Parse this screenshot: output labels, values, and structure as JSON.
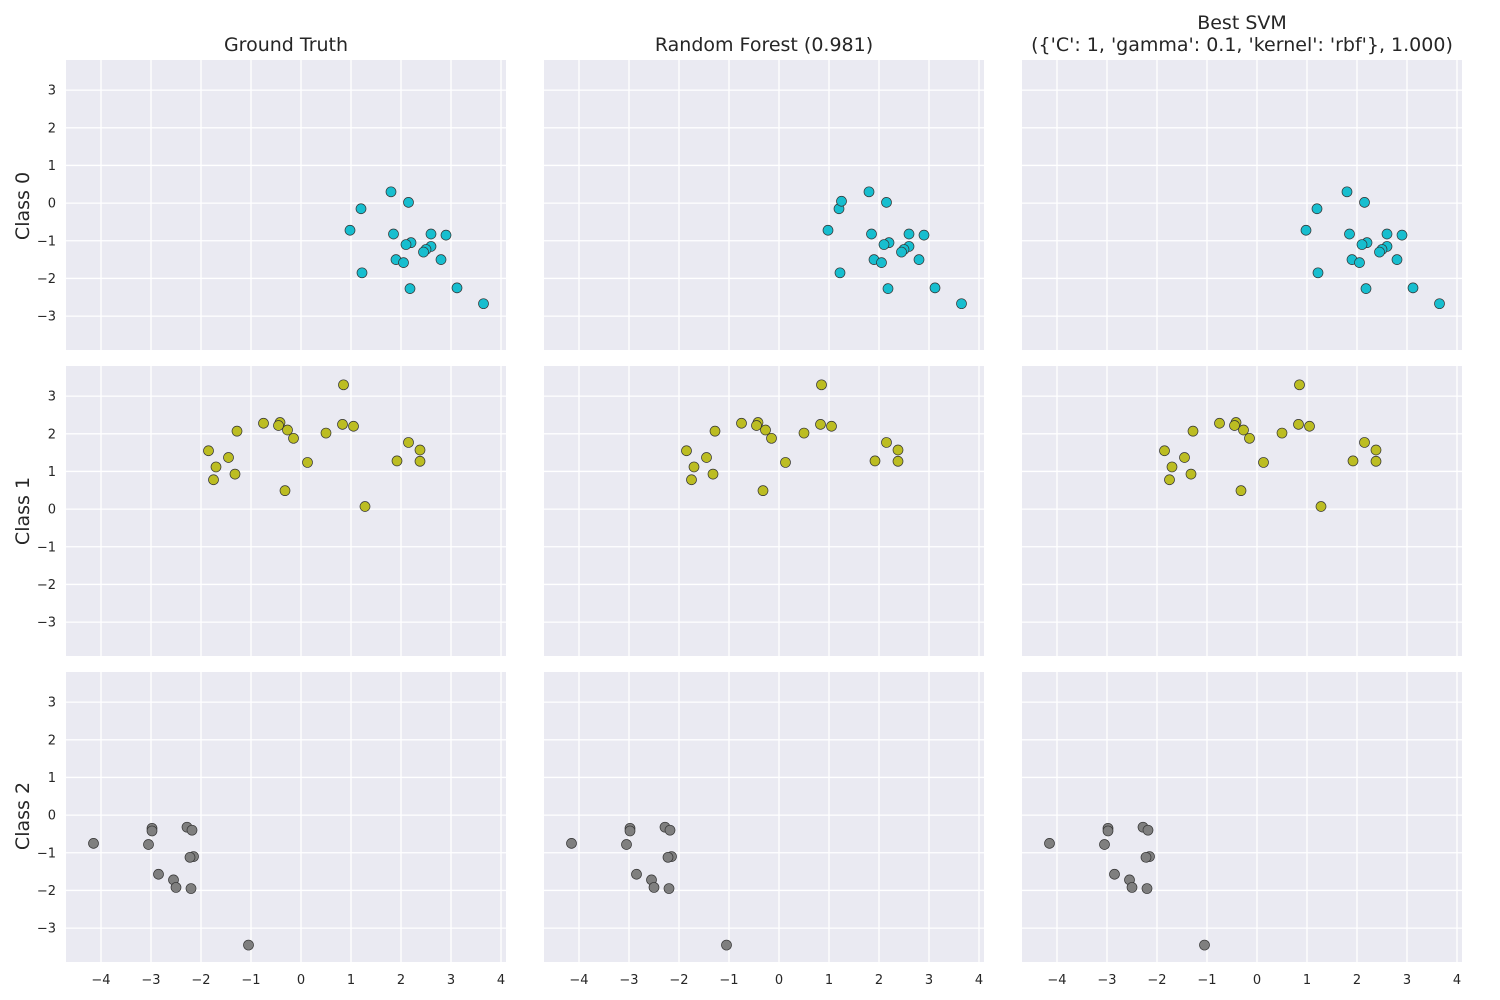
{
  "figure": {
    "column_titles": [
      {
        "lines": [
          "Ground Truth"
        ]
      },
      {
        "lines": [
          "Random Forest (0.981)"
        ]
      },
      {
        "lines": [
          "Best SVM",
          "({'C': 1, 'gamma': 0.1, 'kernel': 'rbf'}, 1.000)"
        ]
      }
    ],
    "row_labels": [
      "Class 0",
      "Class 1",
      "Class 2"
    ],
    "background_color": "#eaeaf2",
    "grid_color": "#ffffff"
  },
  "chart_data": {
    "type": "scatter",
    "layout": "3x3 grid, shared axes",
    "grid": true,
    "legend": "none",
    "xlim": [
      -4.7,
      4.1
    ],
    "ylim": [
      -3.9,
      3.8
    ],
    "xticks": [
      -4,
      -3,
      -2,
      -1,
      0,
      1,
      2,
      3,
      4
    ],
    "yticks": [
      3,
      2,
      1,
      0,
      -1,
      -2,
      -3
    ],
    "xtick_labels": [
      "−4",
      "−3",
      "−2",
      "−1",
      "0",
      "1",
      "2",
      "3",
      "4"
    ],
    "ytick_labels": [
      "3",
      "2",
      "1",
      "0",
      "−1",
      "−2",
      "−3"
    ],
    "class_colors": [
      "#17becf",
      "#bcbd22",
      "#7f7f7f"
    ],
    "point_edge_color": "#333333",
    "classes": [
      {
        "label": "Class 0",
        "points": [
          [
            1.8,
            0.3
          ],
          [
            2.15,
            0.02
          ],
          [
            1.2,
            -0.15
          ],
          [
            0.98,
            -0.72
          ],
          [
            1.85,
            -0.82
          ],
          [
            2.6,
            -0.82
          ],
          [
            2.9,
            -0.85
          ],
          [
            2.2,
            -1.05
          ],
          [
            2.1,
            -1.1
          ],
          [
            2.6,
            -1.15
          ],
          [
            2.5,
            -1.23
          ],
          [
            2.45,
            -1.3
          ],
          [
            1.9,
            -1.5
          ],
          [
            2.05,
            -1.58
          ],
          [
            2.8,
            -1.5
          ],
          [
            1.22,
            -1.85
          ],
          [
            2.18,
            -2.27
          ],
          [
            3.12,
            -2.25
          ],
          [
            3.65,
            -2.67
          ]
        ]
      },
      {
        "label": "Class 1",
        "points": [
          [
            0.85,
            3.3
          ],
          [
            -0.42,
            2.3
          ],
          [
            -0.75,
            2.28
          ],
          [
            -0.45,
            2.22
          ],
          [
            0.83,
            2.25
          ],
          [
            1.05,
            2.2
          ],
          [
            -0.27,
            2.1
          ],
          [
            -1.28,
            2.07
          ],
          [
            0.5,
            2.02
          ],
          [
            -0.15,
            1.88
          ],
          [
            2.15,
            1.77
          ],
          [
            2.38,
            1.57
          ],
          [
            -1.85,
            1.55
          ],
          [
            -1.45,
            1.37
          ],
          [
            1.92,
            1.28
          ],
          [
            2.38,
            1.27
          ],
          [
            0.13,
            1.24
          ],
          [
            -1.7,
            1.12
          ],
          [
            -1.32,
            0.93
          ],
          [
            -1.75,
            0.78
          ],
          [
            -0.32,
            0.49
          ],
          [
            1.28,
            0.07
          ]
        ]
      },
      {
        "label": "Class 2",
        "points": [
          [
            -2.98,
            -0.35
          ],
          [
            -2.98,
            -0.42
          ],
          [
            -2.28,
            -0.32
          ],
          [
            -2.18,
            -0.4
          ],
          [
            -4.15,
            -0.75
          ],
          [
            -3.05,
            -0.78
          ],
          [
            -2.15,
            -1.1
          ],
          [
            -2.22,
            -1.12
          ],
          [
            -2.85,
            -1.57
          ],
          [
            -2.55,
            -1.72
          ],
          [
            -2.5,
            -1.92
          ],
          [
            -2.2,
            -1.95
          ],
          [
            -1.05,
            -3.45
          ]
        ]
      }
    ],
    "panels": [
      {
        "column": "Ground Truth",
        "class_points": [
          "Class 0",
          "Class 1",
          "Class 2"
        ]
      },
      {
        "column": "Random Forest (0.981)",
        "class_points": [
          "Class 0 (+ [1.25, 0.05])",
          "Class 1 (− [1.28, 0.07])",
          "Class 2"
        ]
      },
      {
        "column": "Best SVM",
        "class_points": [
          "Class 0",
          "Class 1",
          "Class 2"
        ]
      }
    ]
  }
}
